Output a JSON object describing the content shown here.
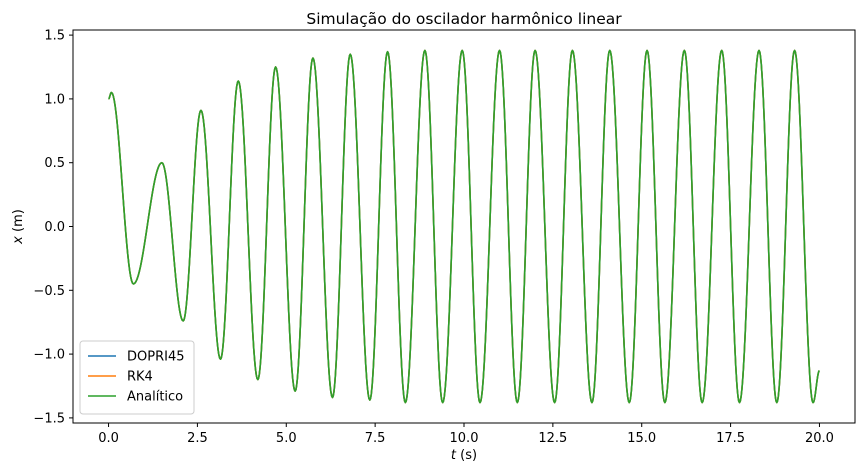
{
  "chart_data": {
    "type": "line",
    "title": "Simulação do oscilador harmônico linear",
    "xlabel_var": "t",
    "xlabel_unit": " (s)",
    "ylabel_var": "x",
    "ylabel_unit": " (m)",
    "xlim": [
      -1.0,
      21.0
    ],
    "ylim": [
      -1.54,
      1.54
    ],
    "xticks": [
      0.0,
      2.5,
      5.0,
      7.5,
      10.0,
      12.5,
      15.0,
      17.5,
      20.0
    ],
    "xtick_labels": [
      "0.0",
      "2.5",
      "5.0",
      "7.5",
      "10.0",
      "12.5",
      "15.0",
      "17.5",
      "20.0"
    ],
    "yticks": [
      -1.5,
      -1.0,
      -0.5,
      0.0,
      0.5,
      1.0,
      1.5
    ],
    "ytick_labels": [
      "−1.5",
      "−1.0",
      "−0.5",
      "0.0",
      "0.5",
      "1.0",
      "1.5"
    ],
    "grid": false,
    "legend_position": "lower-left",
    "t_range": [
      0,
      20
    ],
    "series": [
      {
        "name": "DOPRI45",
        "color": "#1f77b4"
      },
      {
        "name": "RK4",
        "color": "#ff7f0e"
      },
      {
        "name": "Analítico",
        "color": "#2ca02c"
      }
    ],
    "extrema": [
      {
        "t": 0.08,
        "x": 1.05
      },
      {
        "t": 0.7,
        "x": -0.45
      },
      {
        "t": 1.5,
        "x": 0.5
      },
      {
        "t": 2.1,
        "x": -0.74
      },
      {
        "t": 2.6,
        "x": 0.91
      },
      {
        "t": 3.15,
        "x": -1.04
      },
      {
        "t": 3.65,
        "x": 1.14
      },
      {
        "t": 4.2,
        "x": -1.2
      },
      {
        "t": 4.7,
        "x": 1.25
      },
      {
        "t": 5.25,
        "x": -1.29
      },
      {
        "t": 5.75,
        "x": 1.32
      },
      {
        "t": 6.3,
        "x": -1.34
      },
      {
        "t": 6.8,
        "x": 1.35
      },
      {
        "t": 7.35,
        "x": -1.36
      },
      {
        "t": 7.85,
        "x": 1.37
      },
      {
        "t": 8.35,
        "x": -1.38
      },
      {
        "t": 8.9,
        "x": 1.38
      },
      {
        "t": 9.4,
        "x": -1.38
      },
      {
        "t": 9.95,
        "x": 1.38
      },
      {
        "t": 10.45,
        "x": -1.38
      },
      {
        "t": 11.0,
        "x": 1.38
      },
      {
        "t": 11.5,
        "x": -1.38
      },
      {
        "t": 12.0,
        "x": 1.38
      },
      {
        "t": 12.55,
        "x": -1.38
      },
      {
        "t": 13.05,
        "x": 1.38
      },
      {
        "t": 13.6,
        "x": -1.38
      },
      {
        "t": 14.1,
        "x": 1.38
      },
      {
        "t": 14.65,
        "x": -1.38
      },
      {
        "t": 15.15,
        "x": 1.38
      },
      {
        "t": 15.65,
        "x": -1.38
      },
      {
        "t": 16.2,
        "x": 1.38
      },
      {
        "t": 16.7,
        "x": -1.38
      },
      {
        "t": 17.25,
        "x": 1.38
      },
      {
        "t": 17.75,
        "x": -1.38
      },
      {
        "t": 18.3,
        "x": 1.38
      },
      {
        "t": 18.8,
        "x": -1.38
      },
      {
        "t": 19.3,
        "x": 1.38
      },
      {
        "t": 19.82,
        "x": -1.38
      },
      {
        "t": 20.0,
        "x": -1.13
      }
    ]
  }
}
